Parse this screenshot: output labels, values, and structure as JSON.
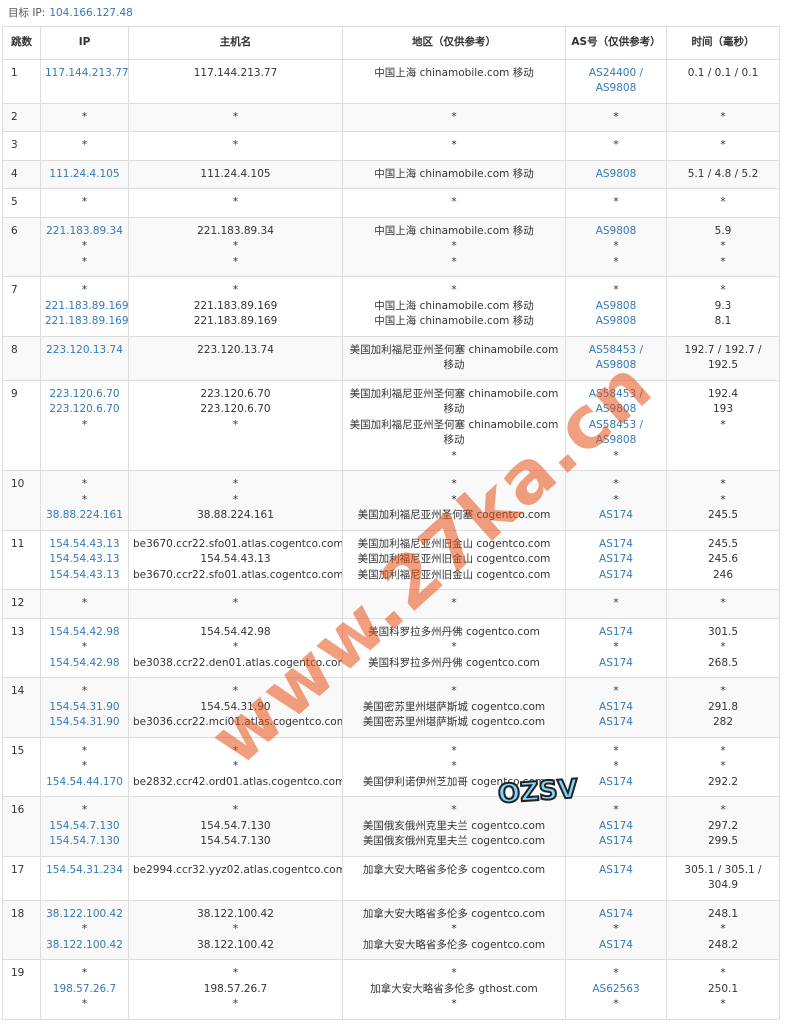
{
  "header": {
    "label": "目标 IP:",
    "ip": "104.166.127.48"
  },
  "table": {
    "headers": [
      "跳数",
      "IP",
      "主机名",
      "地区（仅供参考）",
      "AS号（仅供参考）",
      "时间（毫秒）"
    ],
    "rows": [
      {
        "hop": "1",
        "ip": [
          "117.144.213.77"
        ],
        "host": [
          "117.144.213.77"
        ],
        "region": [
          "中国上海 chinamobile.com 移动"
        ],
        "as": [
          "AS24400 /",
          "AS9808"
        ],
        "time": [
          "0.1 / 0.1 / 0.1"
        ]
      },
      {
        "hop": "2",
        "ip": [
          "*"
        ],
        "host": [
          "*"
        ],
        "region": [
          "*"
        ],
        "as": [
          "*"
        ],
        "time": [
          "*"
        ]
      },
      {
        "hop": "3",
        "ip": [
          "*"
        ],
        "host": [
          "*"
        ],
        "region": [
          "*"
        ],
        "as": [
          "*"
        ],
        "time": [
          "*"
        ]
      },
      {
        "hop": "4",
        "ip": [
          "111.24.4.105"
        ],
        "host": [
          "111.24.4.105"
        ],
        "region": [
          "中国上海 chinamobile.com 移动"
        ],
        "as": [
          "AS9808"
        ],
        "time": [
          "5.1 / 4.8 / 5.2"
        ]
      },
      {
        "hop": "5",
        "ip": [
          "*"
        ],
        "host": [
          "*"
        ],
        "region": [
          "*"
        ],
        "as": [
          "*"
        ],
        "time": [
          "*"
        ]
      },
      {
        "hop": "6",
        "ip": [
          "221.183.89.34",
          "*",
          "*"
        ],
        "host": [
          "221.183.89.34",
          "*",
          "*"
        ],
        "region": [
          "中国上海 chinamobile.com 移动",
          "*",
          "*"
        ],
        "as": [
          "AS9808",
          "*",
          "*"
        ],
        "time": [
          "5.9",
          "*",
          "*"
        ]
      },
      {
        "hop": "7",
        "ip": [
          "*",
          "221.183.89.169",
          "221.183.89.169"
        ],
        "host": [
          "*",
          "221.183.89.169",
          "221.183.89.169"
        ],
        "region": [
          "*",
          "中国上海 chinamobile.com 移动",
          "中国上海 chinamobile.com 移动"
        ],
        "as": [
          "*",
          "AS9808",
          "AS9808"
        ],
        "time": [
          "*",
          "9.3",
          "8.1"
        ]
      },
      {
        "hop": "8",
        "ip": [
          "223.120.13.74"
        ],
        "host": [
          "223.120.13.74"
        ],
        "region": [
          "美国加利福尼亚州圣何塞 chinamobile.com",
          "移动"
        ],
        "as": [
          "AS58453 /",
          "AS9808"
        ],
        "time": [
          "192.7 / 192.7 /",
          "192.5"
        ]
      },
      {
        "hop": "9",
        "ip": [
          "223.120.6.70",
          "223.120.6.70",
          "*"
        ],
        "host": [
          "223.120.6.70",
          "223.120.6.70",
          "*"
        ],
        "region": [
          "美国加利福尼亚州圣何塞 chinamobile.com",
          "移动",
          "美国加利福尼亚州圣何塞 chinamobile.com",
          "移动",
          "*"
        ],
        "as": [
          "AS58453 /",
          "AS9808",
          "AS58453 /",
          "AS9808",
          "*"
        ],
        "time": [
          "192.4",
          "193",
          "*"
        ]
      },
      {
        "hop": "10",
        "ip": [
          "*",
          "*",
          "38.88.224.161"
        ],
        "host": [
          "*",
          "*",
          "38.88.224.161"
        ],
        "region": [
          "*",
          "*",
          "美国加利福尼亚州圣何塞 cogentco.com"
        ],
        "as": [
          "*",
          "*",
          "AS174"
        ],
        "time": [
          "*",
          "*",
          "245.5"
        ]
      },
      {
        "hop": "11",
        "ip": [
          "154.54.43.13",
          "154.54.43.13",
          "154.54.43.13"
        ],
        "host": [
          "be3670.ccr22.sfo01.atlas.cogentco.com",
          "154.54.43.13",
          "be3670.ccr22.sfo01.atlas.cogentco.com"
        ],
        "region": [
          "美国加利福尼亚州旧金山 cogentco.com",
          "美国加利福尼亚州旧金山 cogentco.com",
          "美国加利福尼亚州旧金山 cogentco.com"
        ],
        "as": [
          "AS174",
          "AS174",
          "AS174"
        ],
        "time": [
          "245.5",
          "245.6",
          "246"
        ]
      },
      {
        "hop": "12",
        "ip": [
          "*"
        ],
        "host": [
          "*"
        ],
        "region": [
          "*"
        ],
        "as": [
          "*"
        ],
        "time": [
          "*"
        ]
      },
      {
        "hop": "13",
        "ip": [
          "154.54.42.98",
          "*",
          "154.54.42.98"
        ],
        "host": [
          "154.54.42.98",
          "*",
          "be3038.ccr22.den01.atlas.cogentco.com"
        ],
        "region": [
          "美国科罗拉多州丹佛 cogentco.com",
          "*",
          "美国科罗拉多州丹佛 cogentco.com"
        ],
        "as": [
          "AS174",
          "*",
          "AS174"
        ],
        "time": [
          "301.5",
          "*",
          "268.5"
        ]
      },
      {
        "hop": "14",
        "ip": [
          "*",
          "154.54.31.90",
          "154.54.31.90"
        ],
        "host": [
          "*",
          "154.54.31.90",
          "be3036.ccr22.mci01.atlas.cogentco.com"
        ],
        "region": [
          "*",
          "美国密苏里州堪萨斯城 cogentco.com",
          "美国密苏里州堪萨斯城 cogentco.com"
        ],
        "as": [
          "*",
          "AS174",
          "AS174"
        ],
        "time": [
          "*",
          "291.8",
          "282"
        ]
      },
      {
        "hop": "15",
        "ip": [
          "*",
          "*",
          "154.54.44.170"
        ],
        "host": [
          "*",
          "*",
          "be2832.ccr42.ord01.atlas.cogentco.com"
        ],
        "region": [
          "*",
          "*",
          "美国伊利诺伊州芝加哥 cogentco.com"
        ],
        "as": [
          "*",
          "*",
          "AS174"
        ],
        "time": [
          "*",
          "*",
          "292.2"
        ]
      },
      {
        "hop": "16",
        "ip": [
          "*",
          "154.54.7.130",
          "154.54.7.130"
        ],
        "host": [
          "*",
          "154.54.7.130",
          "154.54.7.130"
        ],
        "region": [
          "*",
          "美国俄亥俄州克里夫兰 cogentco.com",
          "美国俄亥俄州克里夫兰 cogentco.com"
        ],
        "as": [
          "*",
          "AS174",
          "AS174"
        ],
        "time": [
          "*",
          "297.2",
          "299.5"
        ]
      },
      {
        "hop": "17",
        "ip": [
          "154.54.31.234"
        ],
        "host": [
          "be2994.ccr32.yyz02.atlas.cogentco.com"
        ],
        "region": [
          "加拿大安大略省多伦多 cogentco.com"
        ],
        "as": [
          "AS174"
        ],
        "time": [
          "305.1 / 305.1 /",
          "304.9"
        ]
      },
      {
        "hop": "18",
        "ip": [
          "38.122.100.42",
          "*",
          "38.122.100.42"
        ],
        "host": [
          "38.122.100.42",
          "*",
          "38.122.100.42"
        ],
        "region": [
          "加拿大安大略省多伦多 cogentco.com",
          "*",
          "加拿大安大略省多伦多 cogentco.com"
        ],
        "as": [
          "AS174",
          "*",
          "AS174"
        ],
        "time": [
          "248.1",
          "*",
          "248.2"
        ]
      },
      {
        "hop": "19",
        "ip": [
          "*",
          "198.57.26.7",
          "*"
        ],
        "host": [
          "*",
          "198.57.26.7",
          "*"
        ],
        "region": [
          "*",
          "加拿大安大略省多伦多 gthost.com",
          "*"
        ],
        "as": [
          "*",
          "AS62563",
          "*"
        ],
        "time": [
          "*",
          "250.1",
          "*"
        ]
      }
    ]
  },
  "watermark": "www.27ka.cn",
  "badge": "OZSV"
}
